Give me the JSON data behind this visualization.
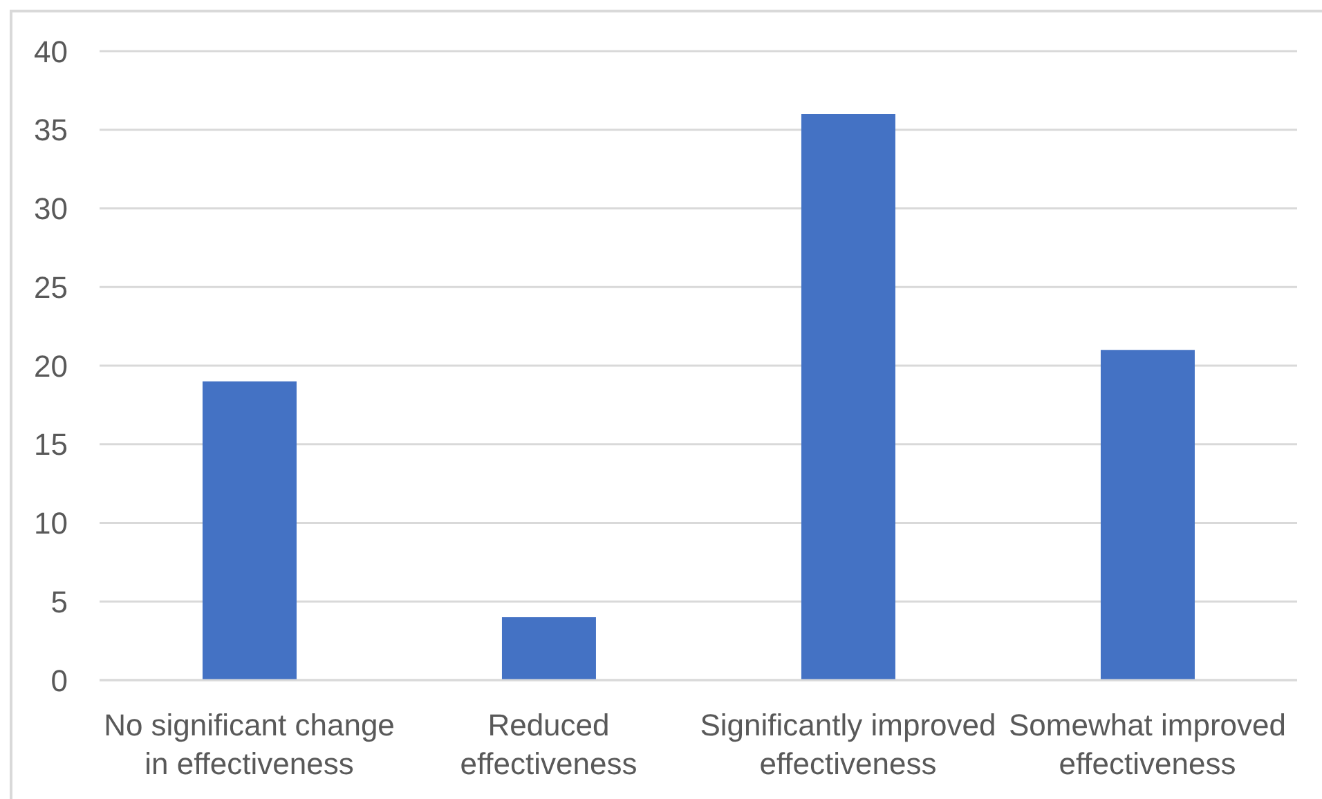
{
  "chart_data": {
    "type": "bar",
    "categories": [
      "No significant change in effectiveness",
      "Reduced effectiveness",
      "Significantly improved effectiveness",
      "Somewhat improved effectiveness"
    ],
    "values": [
      19,
      4,
      36,
      21
    ],
    "color": "#4472c4",
    "ylim": [
      0,
      40
    ],
    "yticks": [
      0,
      5,
      10,
      15,
      20,
      25,
      30,
      35,
      40
    ],
    "grid": "y"
  }
}
